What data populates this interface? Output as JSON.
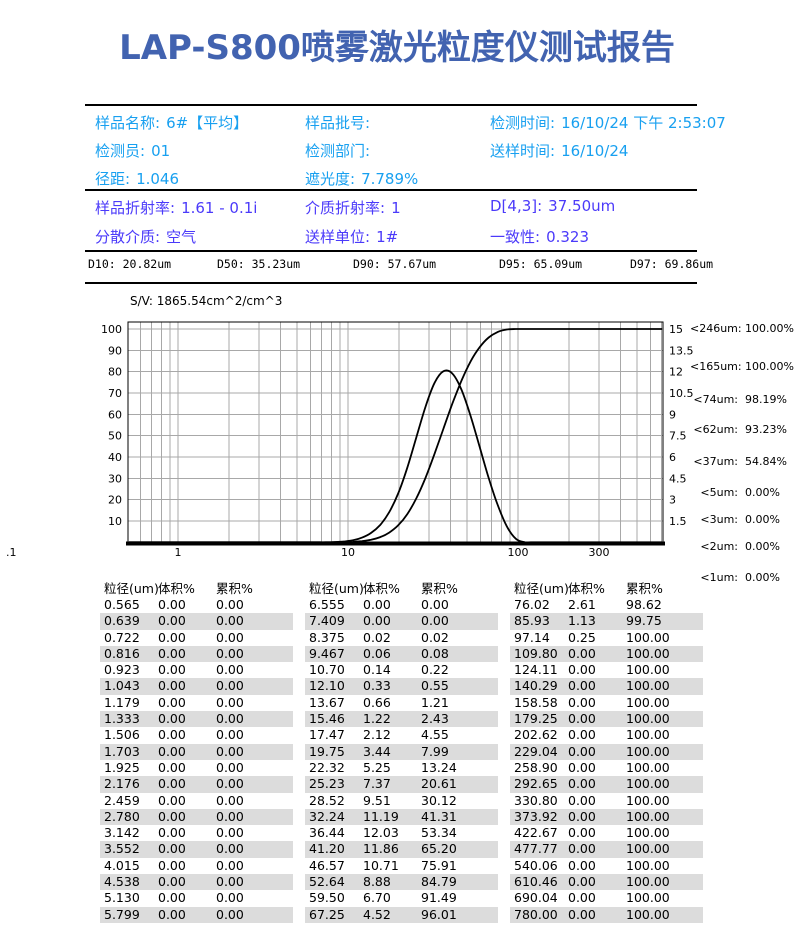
{
  "title": "LAP-S800喷雾激光粒度仪测试报告",
  "colors": {
    "title": "#4263b0",
    "sample_info": "#18a0f0",
    "optical_info": "#4b3afa",
    "grid": "#a8a8a8",
    "stripe": "#dcdcdc",
    "curve": "#000000"
  },
  "sample_info": {
    "rows": [
      [
        {
          "label": "样品名称:",
          "value": "6#【平均】"
        },
        {
          "label": "样品批号:",
          "value": ""
        },
        {
          "label": "检测时间:",
          "value": "16/10/24 下午 2:53:07"
        }
      ],
      [
        {
          "label": "检测员:",
          "value": "01"
        },
        {
          "label": "检测部门:",
          "value": ""
        },
        {
          "label": "送样时间:",
          "value": "16/10/24"
        }
      ],
      [
        {
          "label": "径距:",
          "value": "1.046"
        },
        {
          "label": "遮光度:",
          "value": "7.789%"
        }
      ]
    ]
  },
  "optical_info": {
    "rows": [
      [
        {
          "label": "样品折射率:",
          "value": "1.61 - 0.1i"
        },
        {
          "label": "介质折射率:",
          "value": "1"
        },
        {
          "label": "D[4,3]:",
          "value": "37.50um"
        }
      ],
      [
        {
          "label": "分散介质:",
          "value": "空气"
        },
        {
          "label": "送样单位:",
          "value": "1#"
        },
        {
          "label": "一致性:",
          "value": "0.323"
        }
      ]
    ]
  },
  "d_values": [
    {
      "label": "D10:",
      "value": "20.82um"
    },
    {
      "label": "D50:",
      "value": "35.23um"
    },
    {
      "label": "D90:",
      "value": "57.67um"
    },
    {
      "label": "D95:",
      "value": "65.09um"
    },
    {
      "label": "D97:",
      "value": "69.86um"
    }
  ],
  "sv_line": "S/V: 1865.54cm^2/cm^3",
  "threshold_summary": [
    {
      "label": "<246um:",
      "value": "100.00%"
    },
    {
      "label": "<165um:",
      "value": "100.00%"
    },
    {
      "label": "<74um:",
      "value": "98.19%"
    },
    {
      "label": "<62um:",
      "value": "93.23%"
    },
    {
      "label": "<37um:",
      "value": "54.84%"
    },
    {
      "label": "<5um:",
      "value": "0.00%"
    },
    {
      "label": "<3um:",
      "value": "0.00%"
    },
    {
      "label": "<2um:",
      "value": "0.00%"
    },
    {
      "label": "<1um:",
      "value": "0.00%"
    }
  ],
  "chart_data": {
    "type": "line",
    "x_scale": "log",
    "x_ticks": [
      ".1",
      "1",
      "10",
      "100",
      "300"
    ],
    "x_range_um": [
      0.51,
      713
    ],
    "left_axis_ticks": [
      10,
      20,
      30,
      40,
      50,
      60,
      70,
      80,
      90,
      100
    ],
    "right_axis_ticks": [
      15,
      13.5,
      12,
      10.5,
      9,
      7.5,
      6,
      4.5,
      3,
      1.5
    ],
    "series": [
      {
        "name": "累积%",
        "axis": "left"
      },
      {
        "name": "体积%",
        "axis": "right"
      }
    ],
    "sizes_um": [
      "0.565",
      "0.639",
      "0.722",
      "0.816",
      "0.923",
      "1.043",
      "1.179",
      "1.333",
      "1.506",
      "1.703",
      "1.925",
      "2.176",
      "2.459",
      "2.780",
      "3.142",
      "3.552",
      "4.015",
      "4.538",
      "5.130",
      "5.799",
      "6.555",
      "7.409",
      "8.375",
      "9.467",
      "10.70",
      "12.10",
      "13.67",
      "15.46",
      "17.47",
      "19.75",
      "22.32",
      "25.23",
      "28.52",
      "32.24",
      "36.44",
      "41.20",
      "46.57",
      "52.64",
      "59.50",
      "67.25",
      "76.02",
      "85.93",
      "97.14",
      "109.80",
      "124.11",
      "140.29",
      "158.58",
      "179.25",
      "202.62",
      "229.04",
      "258.90",
      "292.65",
      "330.80",
      "373.92",
      "422.67",
      "477.77",
      "540.06",
      "610.46",
      "690.04",
      "780.00"
    ],
    "volume_pct": [
      "0.00",
      "0.00",
      "0.00",
      "0.00",
      "0.00",
      "0.00",
      "0.00",
      "0.00",
      "0.00",
      "0.00",
      "0.00",
      "0.00",
      "0.00",
      "0.00",
      "0.00",
      "0.00",
      "0.00",
      "0.00",
      "0.00",
      "0.00",
      "0.00",
      "0.00",
      "0.02",
      "0.06",
      "0.14",
      "0.33",
      "0.66",
      "1.22",
      "2.12",
      "3.44",
      "5.25",
      "7.37",
      "9.51",
      "11.19",
      "12.03",
      "11.86",
      "10.71",
      "8.88",
      "6.70",
      "4.52",
      "2.61",
      "1.13",
      "0.25",
      "0.00",
      "0.00",
      "0.00",
      "0.00",
      "0.00",
      "0.00",
      "0.00",
      "0.00",
      "0.00",
      "0.00",
      "0.00",
      "0.00",
      "0.00",
      "0.00",
      "0.00",
      "0.00",
      "0.00"
    ],
    "cumulative_pct": [
      "0.00",
      "0.00",
      "0.00",
      "0.00",
      "0.00",
      "0.00",
      "0.00",
      "0.00",
      "0.00",
      "0.00",
      "0.00",
      "0.00",
      "0.00",
      "0.00",
      "0.00",
      "0.00",
      "0.00",
      "0.00",
      "0.00",
      "0.00",
      "0.00",
      "0.00",
      "0.02",
      "0.08",
      "0.22",
      "0.55",
      "1.21",
      "2.43",
      "4.55",
      "7.99",
      "13.24",
      "20.61",
      "30.12",
      "41.31",
      "53.34",
      "65.20",
      "75.91",
      "84.79",
      "91.49",
      "96.01",
      "98.62",
      "99.75",
      "100.00",
      "100.00",
      "100.00",
      "100.00",
      "100.00",
      "100.00",
      "100.00",
      "100.00",
      "100.00",
      "100.00",
      "100.00",
      "100.00",
      "100.00",
      "100.00",
      "100.00",
      "100.00",
      "100.00",
      "100.00"
    ]
  },
  "table": {
    "headers": [
      "粒径(um)",
      "体积%",
      "累积%"
    ],
    "rows_per_group": 20
  }
}
